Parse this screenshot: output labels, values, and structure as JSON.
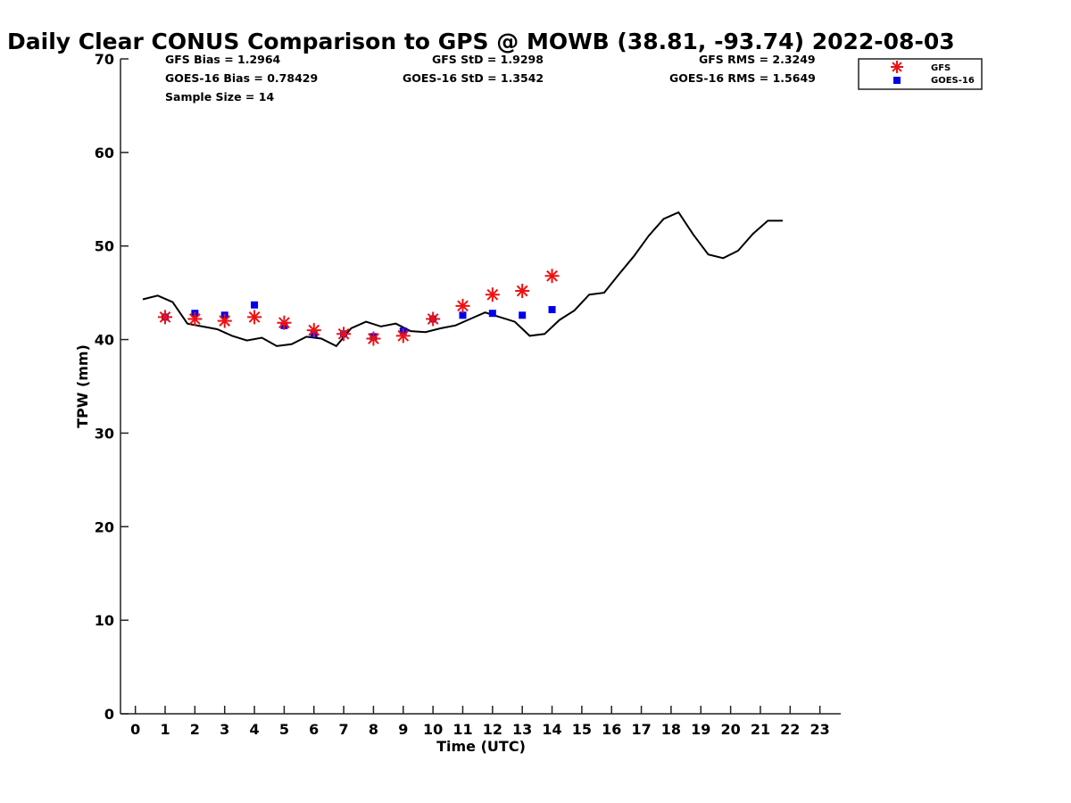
{
  "chart_data": {
    "type": "scatter",
    "title": "Daily Clear CONUS Comparison to GPS @ MOWB (38.81, -93.74) 2022-08-03",
    "xlabel": "Time (UTC)",
    "ylabel": "TPW (mm)",
    "xlim": [
      -0.5,
      23.7
    ],
    "ylim": [
      0,
      70
    ],
    "xticks": [
      "0",
      "1",
      "2",
      "3",
      "4",
      "5",
      "6",
      "7",
      "8",
      "9",
      "10",
      "11",
      "12",
      "13",
      "14",
      "15",
      "16",
      "17",
      "18",
      "19",
      "20",
      "21",
      "22",
      "23"
    ],
    "yticks": [
      "0",
      "10",
      "20",
      "30",
      "40",
      "50",
      "60",
      "70"
    ],
    "grid": false,
    "legend_position": "top-right",
    "stats": {
      "gfs_bias": "GFS Bias = 1.2964",
      "goes_bias": "GOES-16 Bias = 0.78429",
      "sample_size": "Sample Size = 14",
      "gfs_std": "GFS StD = 1.9298",
      "goes_std": "GOES-16 StD = 1.3542",
      "gfs_rms": "GFS RMS = 2.3249",
      "goes_rms": "GOES-16 RMS = 1.5649"
    },
    "series": [
      {
        "name": "GFS",
        "marker": "asterisk",
        "color": "#ee1111",
        "x": [
          1,
          2,
          3,
          4,
          5,
          6,
          7,
          8,
          9,
          10,
          11,
          12,
          13,
          14
        ],
        "y": [
          42.4,
          42.2,
          42.0,
          42.4,
          41.8,
          41.0,
          40.6,
          40.1,
          40.4,
          42.2,
          43.6,
          44.8,
          45.2,
          46.8
        ]
      },
      {
        "name": "GOES-16",
        "marker": "square",
        "color": "#0000ee",
        "x": [
          1,
          2,
          3,
          4,
          5,
          6,
          7,
          8,
          9,
          10,
          11,
          12,
          13,
          14
        ],
        "y": [
          42.4,
          42.8,
          42.6,
          43.7,
          41.5,
          40.6,
          40.6,
          40.3,
          40.9,
          42.2,
          42.6,
          42.8,
          42.6,
          43.2
        ]
      },
      {
        "name": "GPS",
        "marker": "line",
        "color": "#000000",
        "x": [
          0.25,
          0.75,
          1.25,
          1.75,
          2.25,
          2.75,
          3.25,
          3.75,
          4.25,
          4.75,
          5.25,
          5.75,
          6.25,
          6.75,
          7.25,
          7.75,
          8.25,
          8.75,
          9.25,
          9.75,
          10.25,
          10.75,
          11.25,
          11.75,
          12.25,
          12.75,
          13.25,
          13.75,
          14.25,
          14.75,
          15.25,
          15.75,
          16.25,
          16.75,
          17.25,
          17.75,
          18.25,
          18.75,
          19.25,
          19.75,
          20.25,
          20.75,
          21.25,
          21.75
        ],
        "y": [
          44.3,
          44.7,
          44.0,
          41.7,
          41.4,
          41.1,
          40.4,
          39.9,
          40.2,
          39.3,
          39.5,
          40.3,
          40.1,
          39.3,
          41.2,
          41.9,
          41.4,
          41.7,
          40.9,
          40.8,
          41.2,
          41.5,
          42.2,
          42.9,
          42.4,
          41.9,
          40.4,
          40.6,
          42.1,
          43.1,
          44.8,
          45.0,
          47.0,
          48.9,
          51.1,
          52.9,
          53.6,
          51.2,
          49.1,
          48.7,
          49.5,
          51.3,
          52.7,
          52.7
        ]
      }
    ]
  }
}
